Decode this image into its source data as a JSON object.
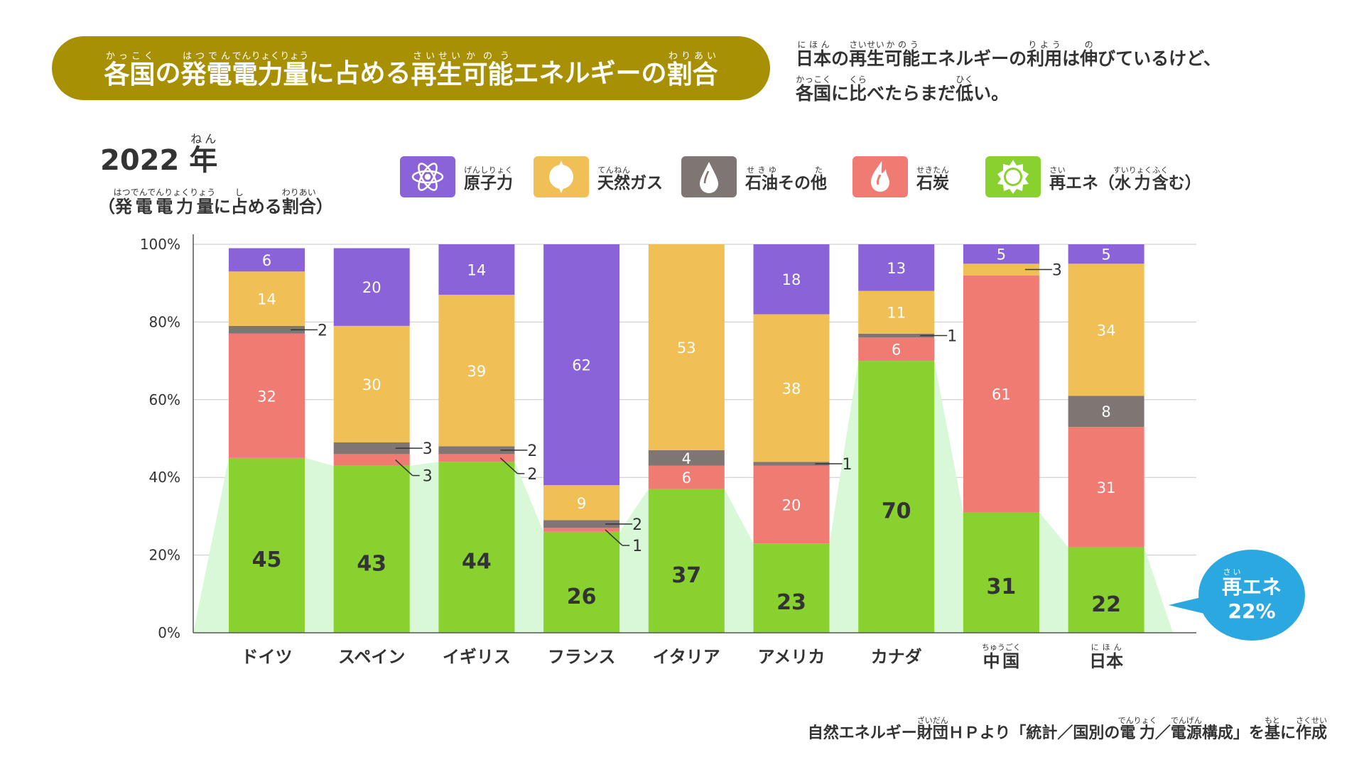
{
  "title": [
    {
      "t": "各国",
      "r": "かっこく"
    },
    {
      "t": "の"
    },
    {
      "t": "発電",
      "r": "はつでん"
    },
    {
      "t": "電力量",
      "r": "でんりょくりょう"
    },
    {
      "t": "に占める"
    },
    {
      "t": "再生",
      "r": "さいせい"
    },
    {
      "t": "可能",
      "r": "かのう"
    },
    {
      "t": "エネルギーの"
    },
    {
      "t": "割合",
      "r": "わりあい"
    }
  ],
  "subtitle_line1": [
    {
      "t": "日本",
      "r": "にほん"
    },
    {
      "t": "の"
    },
    {
      "t": "再生",
      "r": "さいせい"
    },
    {
      "t": "可能",
      "r": "かのう"
    },
    {
      "t": "エネルギーの"
    },
    {
      "t": "利用",
      "r": "りよう"
    },
    {
      "t": "は"
    },
    {
      "t": "伸",
      "r": "の"
    },
    {
      "t": "びているけど、"
    }
  ],
  "subtitle_line2": [
    {
      "t": "各国",
      "r": "かっこく"
    },
    {
      "t": "に"
    },
    {
      "t": "比",
      "r": "くら"
    },
    {
      "t": "べたらまだ"
    },
    {
      "t": "低",
      "r": "ひく"
    },
    {
      "t": "い。"
    }
  ],
  "year": [
    {
      "t": "2022 "
    },
    {
      "t": "年",
      "r": "ねん"
    }
  ],
  "year_sub": [
    {
      "t": "（"
    },
    {
      "t": "発電電力量",
      "r": "はつでんでんりょくりょう"
    },
    {
      "t": "に"
    },
    {
      "t": "占",
      "r": "し"
    },
    {
      "t": "める"
    },
    {
      "t": "割合",
      "r": "わりあい"
    },
    {
      "t": "）"
    }
  ],
  "legend": [
    {
      "key": "nuclear",
      "icon": "atom-icon",
      "color": "#8b63d9",
      "label": [
        {
          "t": "原子力",
          "r": "げんしりょく"
        }
      ]
    },
    {
      "key": "gas",
      "icon": "sun-flame-icon",
      "color": "#f0bf55",
      "label": [
        {
          "t": "天然",
          "r": "てんねん"
        },
        {
          "t": "ガス"
        }
      ]
    },
    {
      "key": "oil",
      "icon": "oil-drop-icon",
      "color": "#7f7573",
      "label": [
        {
          "t": "石油",
          "r": "せきゆ"
        },
        {
          "t": "その"
        },
        {
          "t": "他",
          "r": "た"
        }
      ]
    },
    {
      "key": "coal",
      "icon": "fire-icon",
      "color": "#f07b73",
      "label": [
        {
          "t": "石炭",
          "r": "せきたん"
        }
      ]
    },
    {
      "key": "renew",
      "icon": "sun-icon",
      "color": "#88d12f",
      "label": [
        {
          "t": "再",
          "r": "さい"
        },
        {
          "t": "エネ（"
        },
        {
          "t": "水力",
          "r": "すいりょく"
        },
        {
          "t": "含",
          "r": "ふく"
        },
        {
          "t": "む）"
        }
      ]
    }
  ],
  "chart_data": {
    "type": "bar",
    "stacked": true,
    "ylim": [
      0,
      100
    ],
    "yticks": [
      "0%",
      "20%",
      "40%",
      "60%",
      "80%",
      "100%"
    ],
    "grid": true,
    "categories": [
      [
        {
          "t": "ドイツ"
        }
      ],
      [
        {
          "t": "スペイン"
        }
      ],
      [
        {
          "t": "イギリス"
        }
      ],
      [
        {
          "t": "フランス"
        }
      ],
      [
        {
          "t": "イタリア"
        }
      ],
      [
        {
          "t": "アメリカ"
        }
      ],
      [
        {
          "t": "カナダ"
        }
      ],
      [
        {
          "t": "中国",
          "r": "ちゅうごく"
        }
      ],
      [
        {
          "t": "日本",
          "r": "にほん"
        }
      ]
    ],
    "series": [
      {
        "key": "renew",
        "color": "#88d12f",
        "values": [
          45,
          43,
          44,
          26,
          37,
          23,
          70,
          31,
          22
        ]
      },
      {
        "key": "coal",
        "color": "#f07b73",
        "values": [
          32,
          3,
          2,
          1,
          6,
          20,
          6,
          61,
          31
        ]
      },
      {
        "key": "oil",
        "color": "#7f7573",
        "values": [
          2,
          3,
          2,
          2,
          4,
          1,
          1,
          0,
          8
        ]
      },
      {
        "key": "gas",
        "color": "#f0bf55",
        "values": [
          14,
          30,
          39,
          9,
          53,
          38,
          11,
          3,
          34
        ]
      },
      {
        "key": "nuclear",
        "color": "#8b63d9",
        "values": [
          6,
          20,
          14,
          62,
          0,
          18,
          13,
          5,
          5
        ]
      }
    ],
    "area_color": "#d8f8d8"
  },
  "bubble": {
    "label": [
      {
        "t": "再",
        "r": "さい"
      },
      {
        "t": "エネ"
      }
    ],
    "value": "22%"
  },
  "footer": [
    {
      "t": "自然エネルギー"
    },
    {
      "t": "財団",
      "r": "ざいだん"
    },
    {
      "t": "ＨＰより「統計／国別の"
    },
    {
      "t": "電力",
      "r": "でんりょく"
    },
    {
      "t": "／"
    },
    {
      "t": "電源",
      "r": "でんげん"
    },
    {
      "t": "構成」を"
    },
    {
      "t": "基",
      "r": "もと"
    },
    {
      "t": "に"
    },
    {
      "t": "作成",
      "r": "さくせい"
    }
  ]
}
